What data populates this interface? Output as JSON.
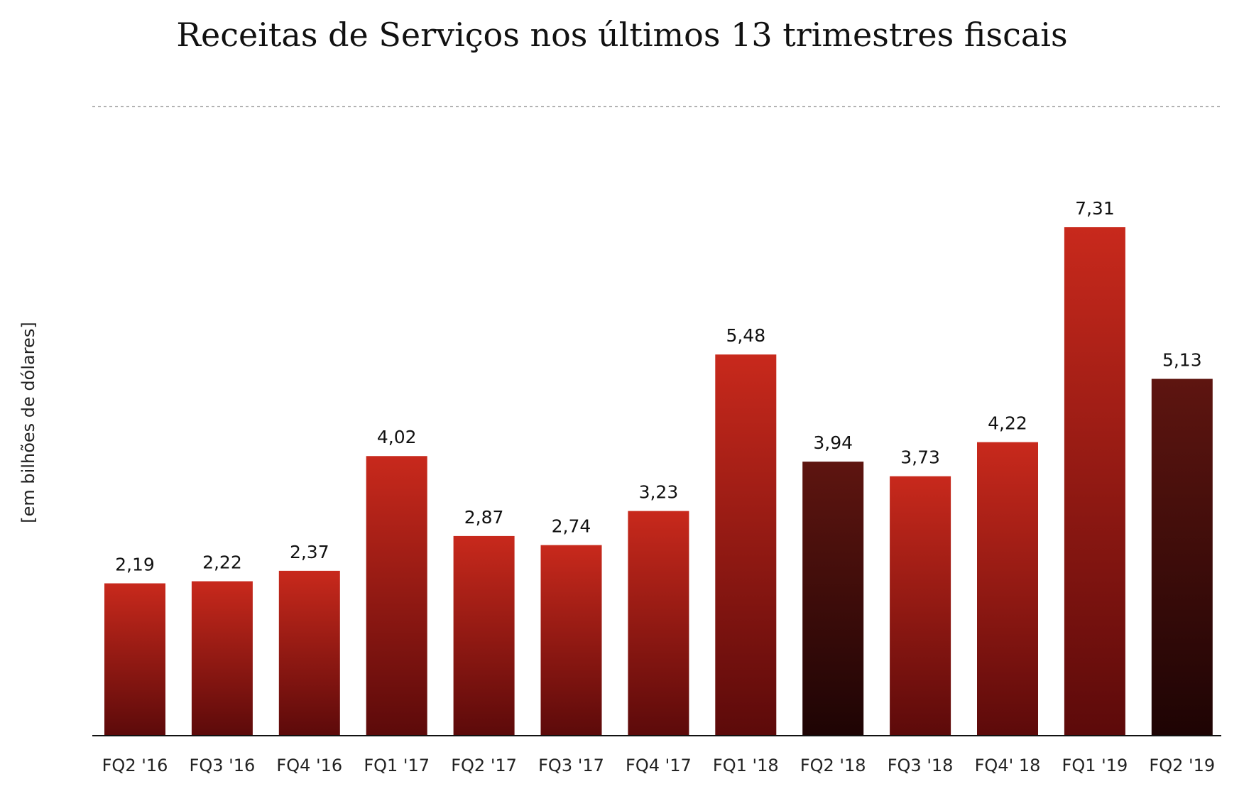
{
  "chart_data": {
    "type": "bar",
    "title": "Receitas de Serviços nos últimos 13 trimestres fiscais",
    "ylabel": "[em bilhões de dólares]",
    "xlabel": "",
    "categories": [
      "FQ2 '16",
      "FQ3 '16",
      "FQ4 '16",
      "FQ1 '17",
      "FQ2 '17",
      "FQ3 '17",
      "FQ4 '17",
      "FQ1 '18",
      "FQ2 '18",
      "FQ3 '18",
      "FQ4' 18",
      "FQ1 '19",
      "FQ2 '19"
    ],
    "values": [
      2.19,
      2.22,
      2.37,
      4.02,
      2.87,
      2.74,
      3.23,
      5.48,
      3.94,
      3.73,
      4.22,
      7.31,
      5.13
    ],
    "value_labels": [
      "2,19",
      "2,22",
      "2,37",
      "4,02",
      "2,87",
      "2,74",
      "3,23",
      "5,48",
      "3,94",
      "3,73",
      "4,22",
      "7,31",
      "5,13"
    ],
    "highlighted": [
      false,
      false,
      false,
      false,
      false,
      false,
      false,
      false,
      true,
      false,
      false,
      false,
      true
    ],
    "ylim": [
      0,
      9
    ],
    "grid": "single dotted line at top",
    "colors": {
      "bar_top": "#c8291c",
      "bar_bottom": "#5c0a0a",
      "highlight_top": "#5e1510",
      "highlight_bottom": "#1e0404",
      "baseline": "#111111",
      "gridline": "#999999"
    }
  }
}
